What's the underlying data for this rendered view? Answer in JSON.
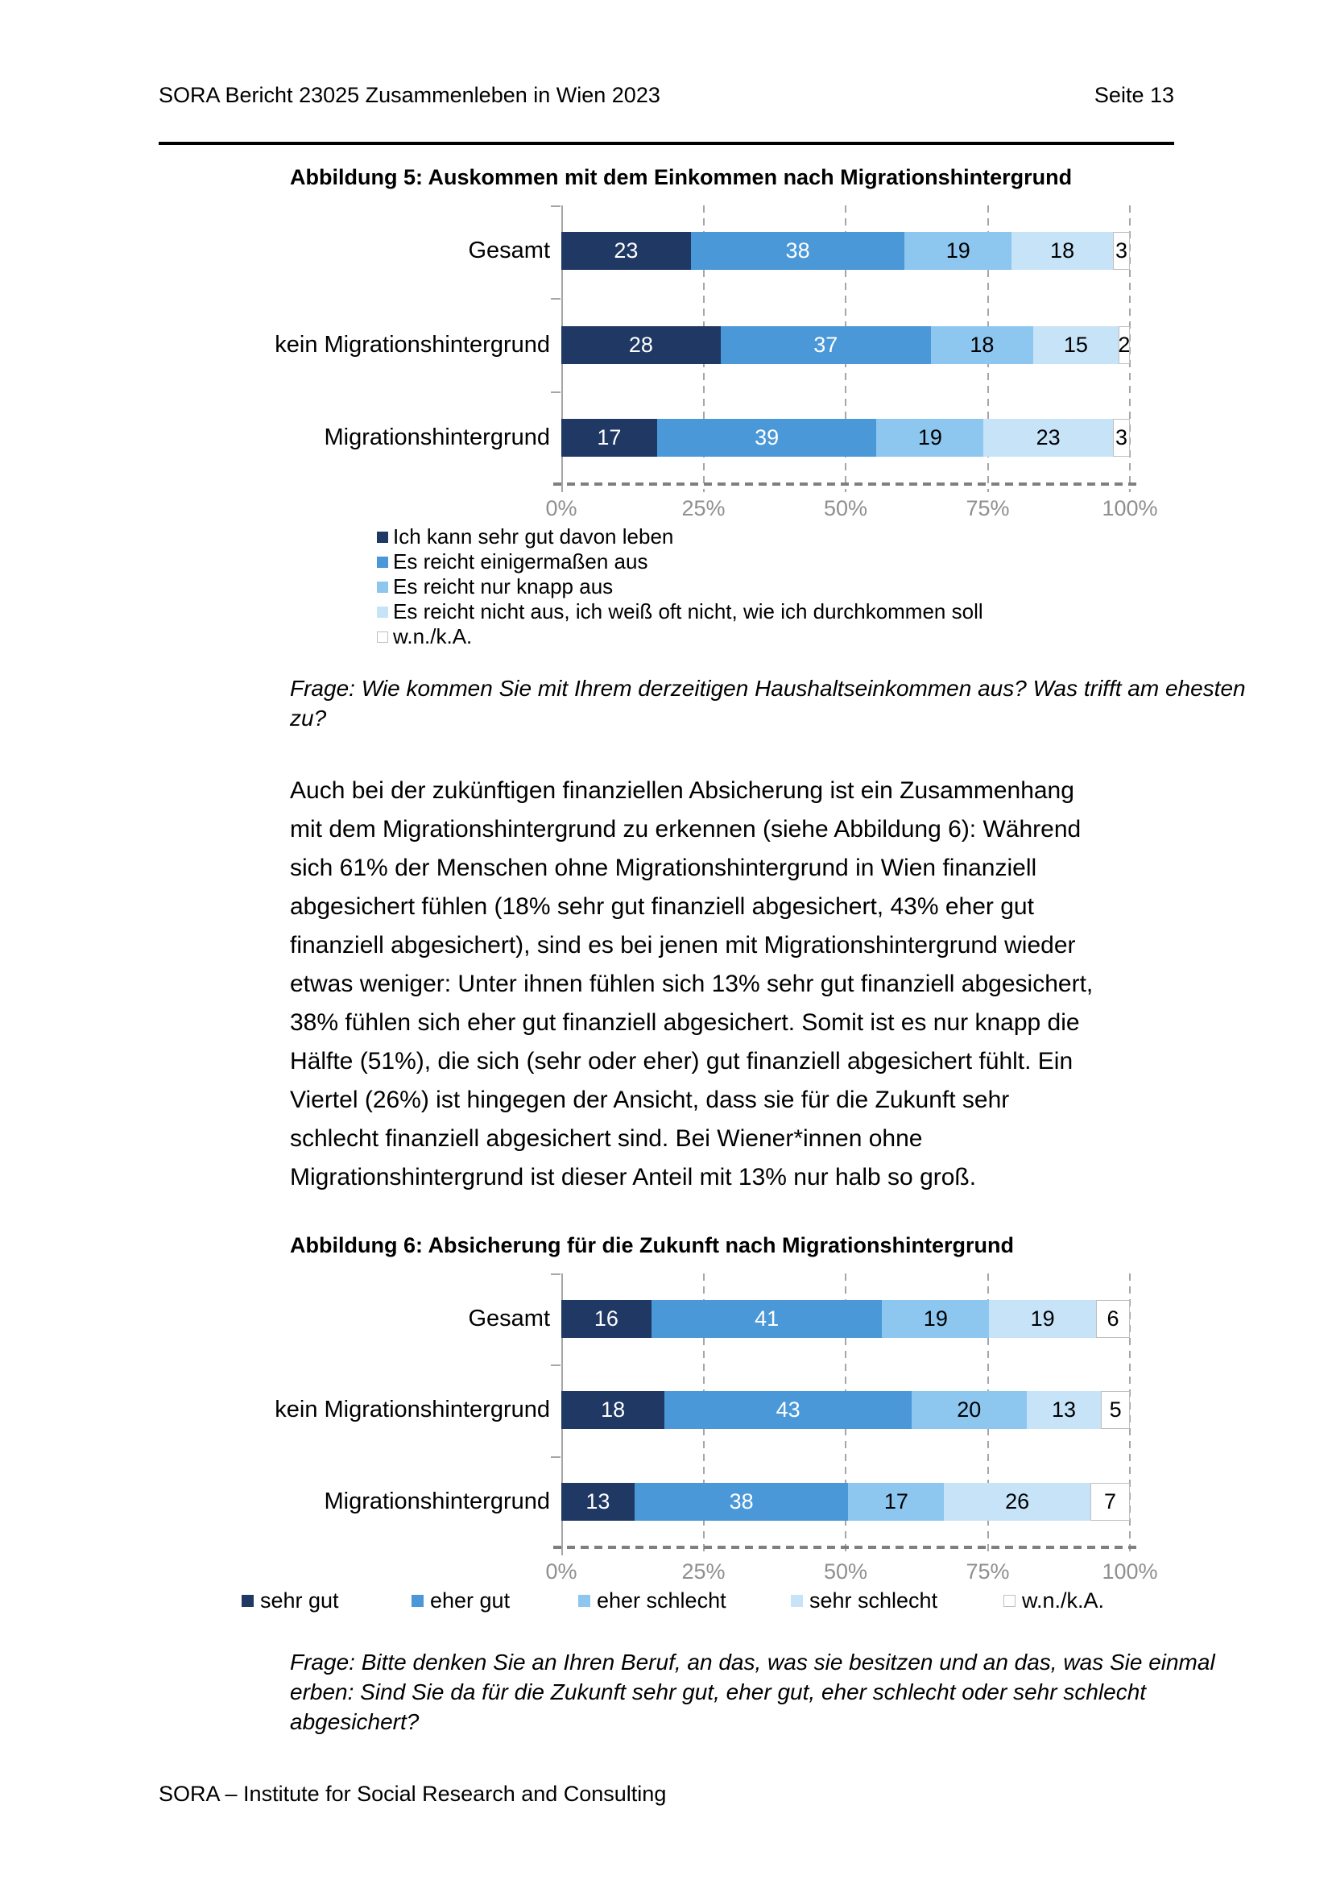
{
  "header": {
    "left": "SORA Bericht 23025 Zusammenleben in Wien 2023",
    "right": "Seite 13"
  },
  "footer": {
    "text": "SORA – Institute for Social Research and Consulting"
  },
  "colors": {
    "navy": "#1F3864",
    "blue": "#4A98D8",
    "light_blue": "#8DC6EF",
    "pale_blue": "#C7E3F8",
    "white_segment": "#FFFFFF",
    "segment_border": "#BFBFBF",
    "grid": "#A6A6A6",
    "axis_dash": "#7F7F7F",
    "tick_label": "#8F8F8F"
  },
  "body_paragraph": {
    "lines": [
      "Auch bei der zukünftigen finanziellen Absicherung ist ein Zusammenhang",
      "mit dem Migrationshintergrund zu erkennen (siehe Abbildung 6): Während",
      "sich 61% der Menschen ohne Migrationshintergrund in Wien finanziell",
      "abgesichert fühlen (18% sehr gut finanziell abgesichert, 43% eher gut",
      "finanziell abgesichert), sind es bei jenen mit Migrationshintergrund wieder",
      "etwas weniger: Unter ihnen fühlen sich 13% sehr gut finanziell abgesichert,",
      "38% fühlen sich eher gut finanziell abgesichert. Somit ist es nur knapp die",
      "Hälfte (51%), die sich (sehr oder eher) gut finanziell abgesichert fühlt. Ein",
      "Viertel (26%) ist hingegen der Ansicht, dass sie für die Zukunft sehr",
      "schlecht finanziell abgesichert sind. Bei Wiener*innen ohne",
      "Migrationshintergrund ist dieser Anteil mit 13% nur halb so groß."
    ]
  },
  "chart_data": [
    {
      "type": "bar",
      "stacked": true,
      "orientation": "horizontal",
      "title": "Abbildung 5: Auskommen mit dem Einkommen nach Migrationshintergrund",
      "categories": [
        "Gesamt",
        "kein Migrationshintergrund",
        "Migrationshintergrund"
      ],
      "series": [
        {
          "name": "Ich kann sehr gut davon leben",
          "color": "#1F3864",
          "value_color": "#FFFFFF",
          "values": [
            23,
            28,
            17
          ]
        },
        {
          "name": "Es reicht einigermaßen aus",
          "color": "#4A98D8",
          "value_color": "#FFFFFF",
          "values": [
            38,
            37,
            39
          ]
        },
        {
          "name": "Es reicht nur knapp aus",
          "color": "#8DC6EF",
          "value_color": "#000000",
          "values": [
            19,
            18,
            19
          ]
        },
        {
          "name": "Es reicht nicht aus, ich weiß oft nicht, wie ich durchkommen soll",
          "color": "#C7E3F8",
          "value_color": "#000000",
          "values": [
            18,
            15,
            23
          ]
        },
        {
          "name": "w.n./k.A.",
          "color": "#FFFFFF",
          "value_color": "#000000",
          "bordered": true,
          "values": [
            3,
            2,
            3
          ]
        }
      ],
      "x_ticks": [
        "0%",
        "25%",
        "50%",
        "75%",
        "100%"
      ],
      "xlim": [
        0,
        100
      ],
      "grid": true,
      "legend_position": "bottom-vertical",
      "question_lines": [
        "Frage: Wie kommen Sie mit Ihrem derzeitigen Haushaltseinkommen aus? Was trifft am ehesten",
        "zu?"
      ]
    },
    {
      "type": "bar",
      "stacked": true,
      "orientation": "horizontal",
      "title": "Abbildung 6: Absicherung für die Zukunft nach Migrationshintergrund",
      "categories": [
        "Gesamt",
        "kein Migrationshintergrund",
        "Migrationshintergrund"
      ],
      "series": [
        {
          "name": "sehr gut",
          "color": "#1F3864",
          "value_color": "#FFFFFF",
          "values": [
            16,
            18,
            13
          ]
        },
        {
          "name": "eher gut",
          "color": "#4A98D8",
          "value_color": "#FFFFFF",
          "values": [
            41,
            43,
            38
          ]
        },
        {
          "name": "eher schlecht",
          "color": "#8DC6EF",
          "value_color": "#000000",
          "values": [
            19,
            20,
            17
          ]
        },
        {
          "name": "sehr schlecht",
          "color": "#C7E3F8",
          "value_color": "#000000",
          "values": [
            19,
            13,
            26
          ]
        },
        {
          "name": "w.n./k.A.",
          "color": "#FFFFFF",
          "value_color": "#000000",
          "bordered": true,
          "values": [
            6,
            5,
            7
          ]
        }
      ],
      "x_ticks": [
        "0%",
        "25%",
        "50%",
        "75%",
        "100%"
      ],
      "xlim": [
        0,
        100
      ],
      "grid": true,
      "legend_position": "bottom-horizontal",
      "question_lines": [
        "Frage: Bitte denken Sie an Ihren Beruf, an das, was sie besitzen und an das, was Sie einmal",
        "erben: Sind Sie da für die Zukunft sehr gut, eher gut, eher schlecht oder sehr schlecht",
        "abgesichert?"
      ]
    }
  ]
}
